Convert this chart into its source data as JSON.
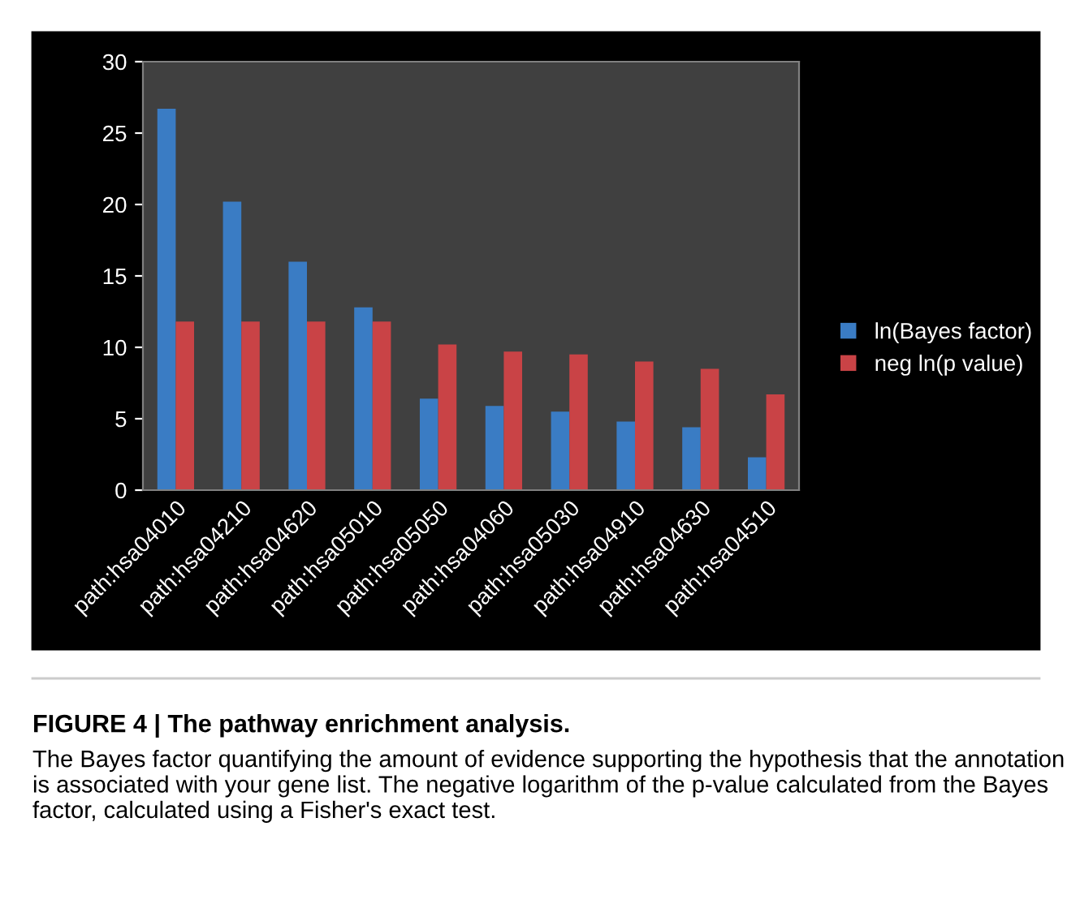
{
  "chart_data": {
    "type": "bar",
    "title": "FIGURE 4 | The pathway enrichment analysis.",
    "annotations": [
      "The Bayes factor quantifying the amount of evidence supporting the hypothesis that the annotation is associated with your gene list. The negative logarithm of the p-value calculated from the Bayes factor, calculated using a Fisher's exact test."
    ],
    "categories": [
      "path:hsa04010",
      "path:hsa04210",
      "path:hsa04620",
      "path:hsa05010",
      "path:hsa05050",
      "path:hsa04060",
      "path:hsa05030",
      "path:hsa04910",
      "path:hsa04630",
      "path:hsa04510"
    ],
    "series": [
      {
        "name": "ln(Bayes factor)",
        "color": "#3a7cc4",
        "values": [
          26.7,
          20.2,
          16.0,
          12.8,
          6.4,
          5.9,
          5.5,
          4.8,
          4.4,
          2.3
        ]
      },
      {
        "name": "neg ln(p value)",
        "color": "#c94346",
        "values": [
          11.8,
          11.8,
          11.8,
          11.8,
          10.2,
          9.7,
          9.5,
          9.0,
          8.5,
          6.7
        ]
      }
    ],
    "ylim": [
      0,
      30
    ],
    "yticks": [
      0,
      5,
      10,
      15,
      20,
      25,
      30
    ],
    "grid": false,
    "legend": "right"
  }
}
